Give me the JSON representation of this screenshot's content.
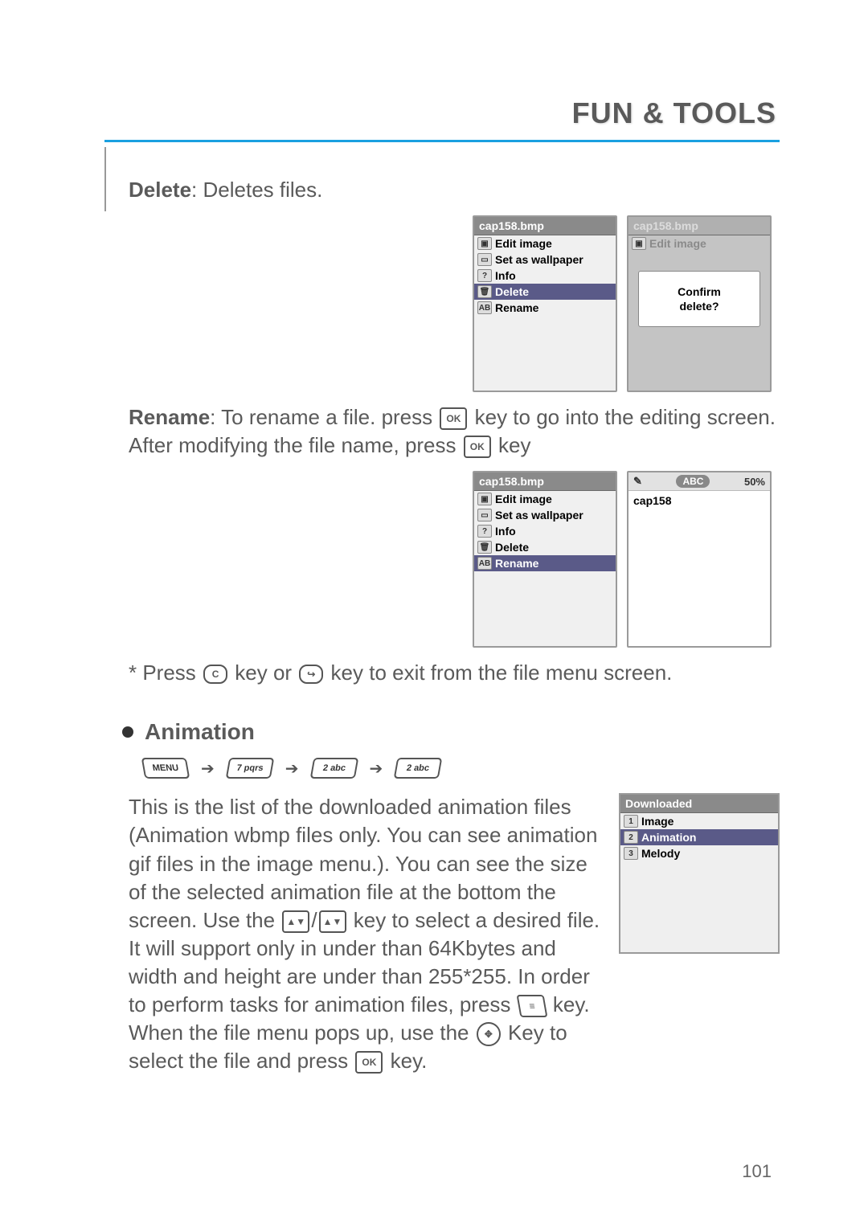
{
  "header": {
    "title": "FUN & TOOLS"
  },
  "colors": {
    "accent": "#1aa0e0",
    "text": "#5a5a5a",
    "menu_selected": "#5a5a88"
  },
  "delete_section": {
    "label": "Delete",
    "desc": ": Deletes files."
  },
  "rename_section": {
    "label": "Rename",
    "desc_before": ": To rename a file. press ",
    "desc_mid": " key to go into the editing screen. After modifying the file name, press ",
    "desc_after": " key"
  },
  "exit_hint": {
    "prefix": "* Press ",
    "mid": " key or ",
    "suffix": " key to exit from the file menu screen."
  },
  "file_menu_delete": {
    "title": "cap158.bmp",
    "items": [
      "Edit image",
      "Set as wallpaper",
      "Info",
      "Delete",
      "Rename"
    ],
    "selected_index": 3
  },
  "confirm_popup": {
    "dim_title": "cap158.bmp",
    "dim_item": "Edit image",
    "line1": "Confirm",
    "line2": "delete?"
  },
  "file_menu_rename": {
    "title": "cap158.bmp",
    "items": [
      "Edit image",
      "Set as wallpaper",
      "Info",
      "Delete",
      "Rename"
    ],
    "selected_index": 4
  },
  "text_edit": {
    "mode": "ABC",
    "percent": "50%",
    "text": "cap158"
  },
  "animation": {
    "heading": "Animation",
    "nav_keys": [
      "MENU",
      "7 pqrs",
      "2 abc",
      "2 abc"
    ],
    "para1": "This is the list of the downloaded animation files (Animation wbmp files only. You can see animation gif files in the image menu.). You can see the size of the selected animation file at the bottom the screen. Use the ",
    "para1_mid": " key to select a desired file. It will support only in under than 64Kbytes and width and height are under than 255*255. In order to perform tasks for animation files, press ",
    "para1_mid2": " key. When the file menu pops up, use the ",
    "para1_mid3": " Key to select the file and press ",
    "para1_end": " key.",
    "downloaded": {
      "title": "Downloaded",
      "items": [
        "Image",
        "Animation",
        "Melody"
      ],
      "selected_index": 1
    }
  },
  "inline_icons": {
    "ok": "OK",
    "c": "C",
    "end": "↪",
    "updown": "▲▼",
    "menu": "≡",
    "nav": "✥"
  },
  "page_number": "101"
}
